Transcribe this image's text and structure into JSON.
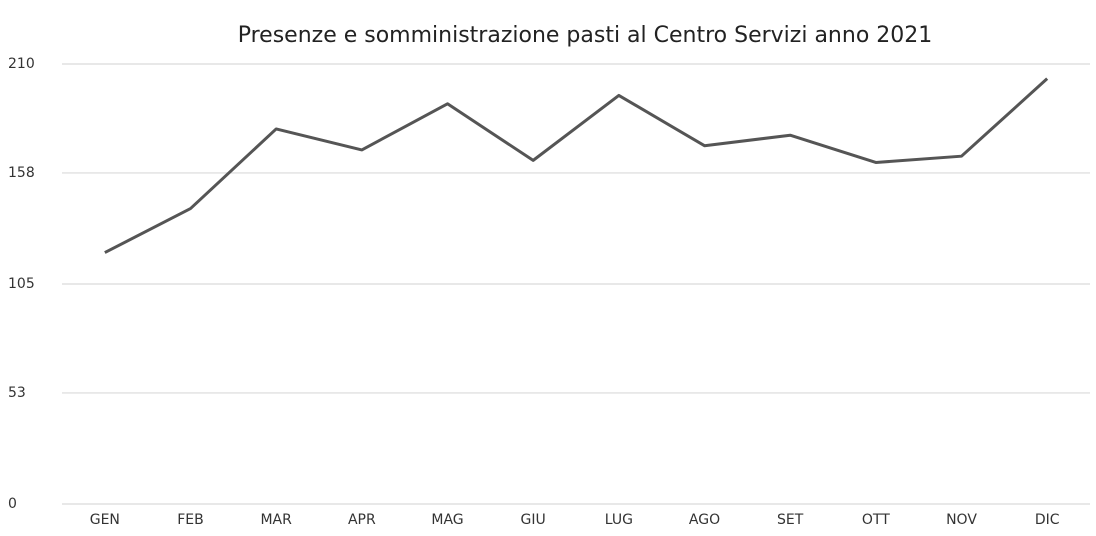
{
  "chart_data": {
    "type": "line",
    "title": "Presenze e somministrazione pasti al Centro Servizi anno 2021",
    "categories": [
      "GEN",
      "FEB",
      "MAR",
      "APR",
      "MAG",
      "GIU",
      "LUG",
      "AGO",
      "SET",
      "OTT",
      "NOV",
      "DIC"
    ],
    "series": [
      {
        "name": "Presenze",
        "color": "#555555",
        "values": [
          120,
          141,
          179,
          169,
          191,
          164,
          195,
          171,
          176,
          163,
          166,
          203
        ]
      }
    ],
    "ylim": [
      0,
      210
    ],
    "yticks": [
      0,
      53,
      105,
      158,
      210
    ],
    "grid": true
  }
}
